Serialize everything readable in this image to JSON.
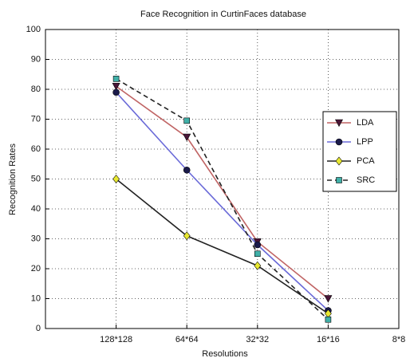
{
  "chart_data": {
    "type": "line",
    "title": "Face Recognition in CurtinFaces database",
    "x_label": "Resolutions",
    "y_label": "Recognition Rates",
    "categories": [
      "128*128",
      "64*64",
      "32*32",
      "16*16",
      "8*8"
    ],
    "series": [
      {
        "name": "LDA",
        "color": "#c06464",
        "marker": "triangle",
        "marker_color": "#4a1638",
        "dashed": false,
        "values": [
          81,
          64,
          29,
          10,
          null
        ]
      },
      {
        "name": "LPP",
        "color": "#6a6ad8",
        "marker": "circle",
        "marker_color": "#1a1a4a",
        "dashed": false,
        "values": [
          79,
          53,
          28,
          6,
          null
        ]
      },
      {
        "name": "PCA",
        "color": "#222222",
        "marker": "diamond",
        "marker_color": "#e8e830",
        "dashed": false,
        "values": [
          50,
          31,
          21,
          5,
          null
        ]
      },
      {
        "name": "SRC",
        "color": "#222222",
        "marker": "square",
        "marker_color": "#40b0a8",
        "dashed": true,
        "values": [
          83.5,
          69.5,
          25,
          3,
          null
        ]
      }
    ],
    "ylim": [
      0,
      100
    ],
    "yticks": [
      0,
      10,
      20,
      30,
      40,
      50,
      60,
      70,
      80,
      90,
      100
    ],
    "grid": true,
    "legend": "right"
  }
}
